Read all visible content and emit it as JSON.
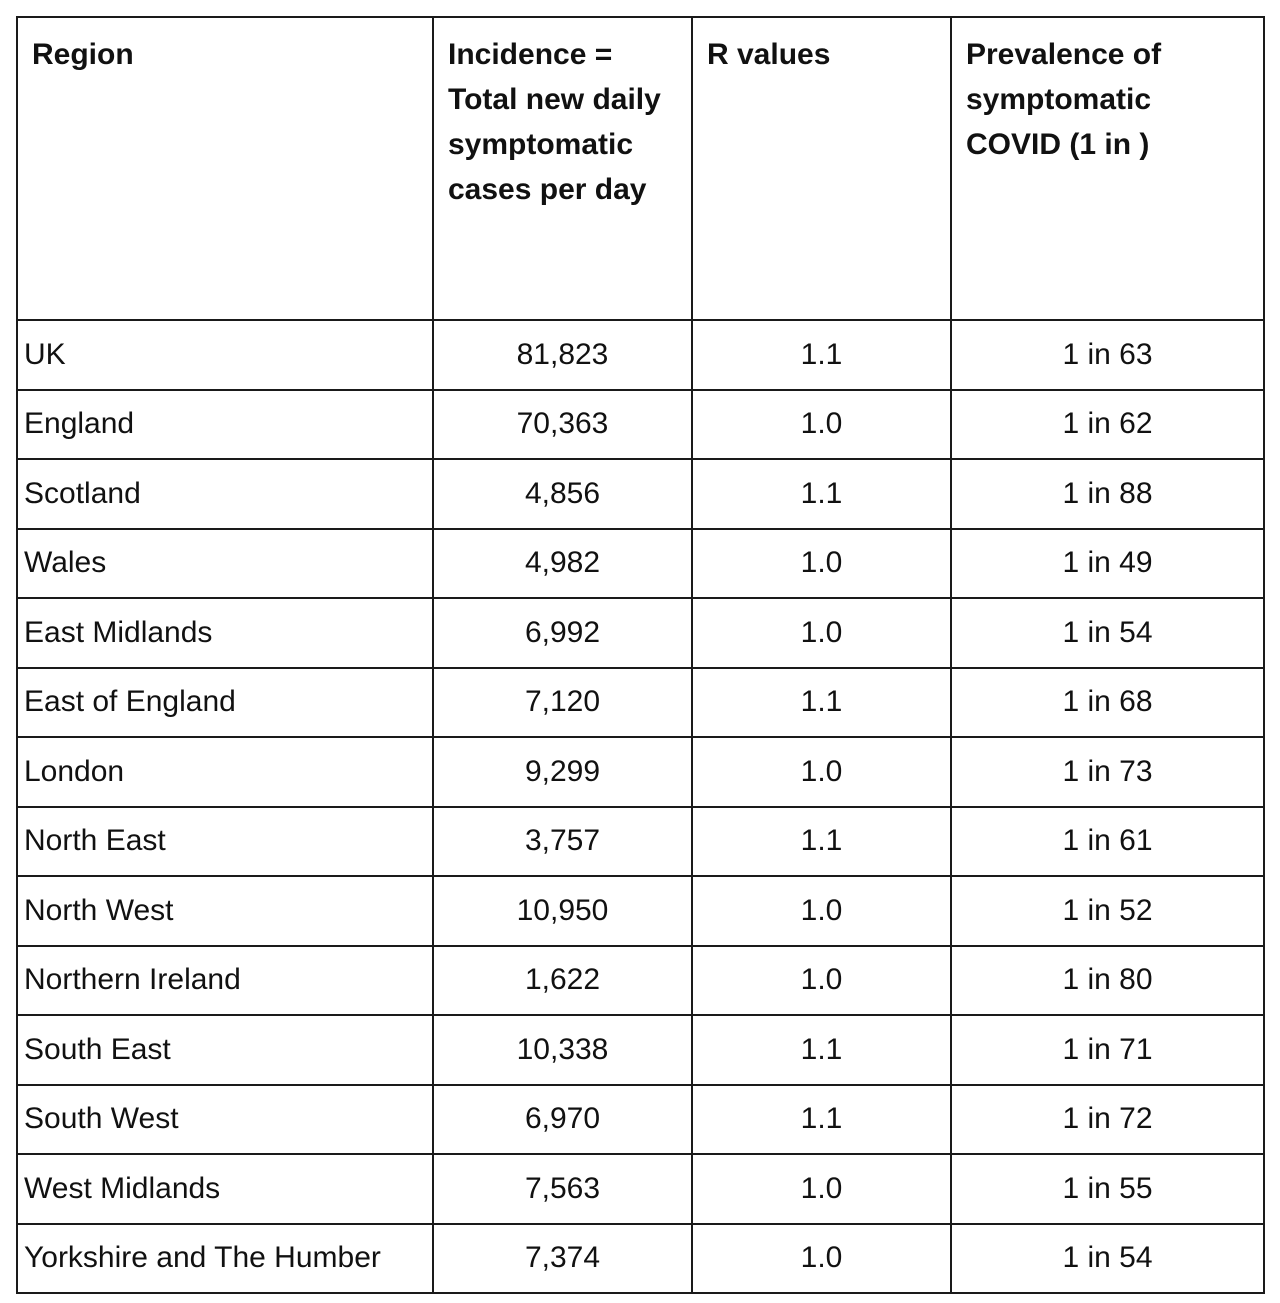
{
  "table": {
    "headers": [
      "Region",
      "Incidence = Total new daily symptomatic cases per day",
      "R values",
      "Prevalence of symptomatic COVID (1 in )"
    ],
    "rows": [
      {
        "region": "UK",
        "incidence": "81,823",
        "r": "1.1",
        "prevalence": "1 in 63"
      },
      {
        "region": "England",
        "incidence": "70,363",
        "r": "1.0",
        "prevalence": "1 in 62"
      },
      {
        "region": "Scotland",
        "incidence": "4,856",
        "r": "1.1",
        "prevalence": "1 in 88"
      },
      {
        "region": "Wales",
        "incidence": "4,982",
        "r": "1.0",
        "prevalence": "1 in 49"
      },
      {
        "region": "East Midlands",
        "incidence": "6,992",
        "r": "1.0",
        "prevalence": "1 in 54"
      },
      {
        "region": "East of England",
        "incidence": "7,120",
        "r": "1.1",
        "prevalence": "1 in 68"
      },
      {
        "region": "London",
        "incidence": "9,299",
        "r": "1.0",
        "prevalence": "1 in 73"
      },
      {
        "region": "North East",
        "incidence": "3,757",
        "r": "1.1",
        "prevalence": "1 in 61"
      },
      {
        "region": "North West",
        "incidence": "10,950",
        "r": "1.0",
        "prevalence": "1 in 52"
      },
      {
        "region": "Northern Ireland",
        "incidence": "1,622",
        "r": "1.0",
        "prevalence": "1 in 80"
      },
      {
        "region": "South East",
        "incidence": "10,338",
        "r": "1.1",
        "prevalence": "1 in 71"
      },
      {
        "region": "South West",
        "incidence": "6,970",
        "r": "1.1",
        "prevalence": "1 in 72"
      },
      {
        "region": "West Midlands",
        "incidence": "7,563",
        "r": "1.0",
        "prevalence": "1 in 55"
      },
      {
        "region": "Yorkshire and The Humber",
        "incidence": "7,374",
        "r": "1.0",
        "prevalence": "1 in 54"
      }
    ]
  }
}
